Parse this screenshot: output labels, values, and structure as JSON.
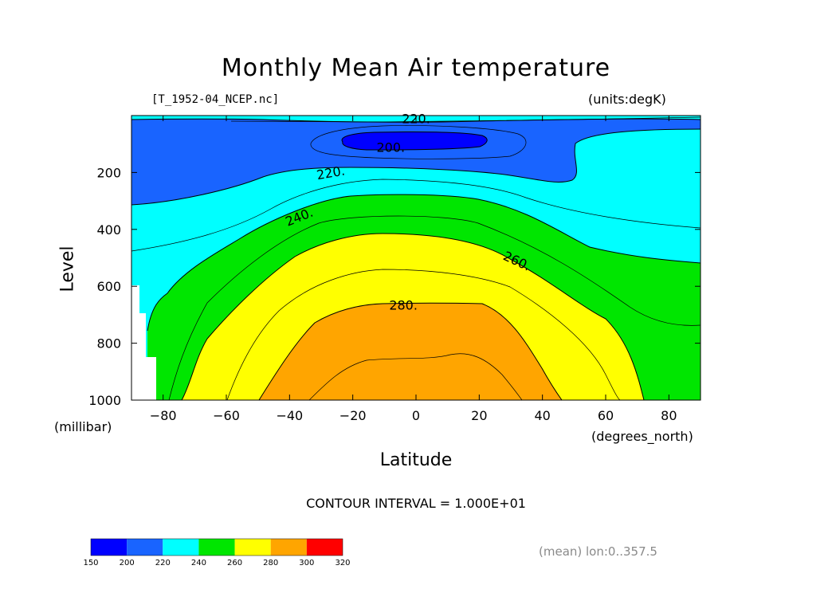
{
  "title": "Monthly Mean Air temperature",
  "file_label": "[T_1952-04_NCEP.nc]",
  "units_label": "(units:degK)",
  "contour_interval": "CONTOUR INTERVAL = 1.000E+01",
  "mean_label": "(mean) lon:0..357.5",
  "chart_data": {
    "type": "contour",
    "title": "Monthly Mean Air temperature",
    "xlabel": "Latitude",
    "xunit": "(degrees_north)",
    "ylabel": "Level",
    "yunit": "(millibar)",
    "xlim": [
      -90,
      90
    ],
    "ylim": [
      1000,
      0
    ],
    "xticks": [
      -80,
      -60,
      -40,
      -20,
      0,
      20,
      40,
      60,
      80
    ],
    "xtick_labels": [
      "−80",
      "−60",
      "−40",
      "−20",
      "0",
      "20",
      "40",
      "60",
      "80"
    ],
    "yticks": [
      200,
      400,
      600,
      800,
      1000
    ],
    "contour_labels": [
      {
        "text": "220.",
        "lat": 0,
        "level": 10
      },
      {
        "text": "200.",
        "lat": -8,
        "level": 110
      },
      {
        "text": "220.",
        "lat": -27,
        "level": 200
      },
      {
        "text": "240.",
        "lat": -37,
        "level": 355
      },
      {
        "text": "260.",
        "lat": 32,
        "level": 510
      },
      {
        "text": "280.",
        "lat": -4,
        "level": 665
      }
    ],
    "colorbar": {
      "ticks": [
        "150",
        "200",
        "220",
        "240",
        "260",
        "280",
        "300",
        "320"
      ],
      "colors": [
        "#0000ff",
        "#1964ff",
        "#00ffff",
        "#00e600",
        "#ffff00",
        "#ffa500",
        "#ff0000"
      ]
    }
  }
}
